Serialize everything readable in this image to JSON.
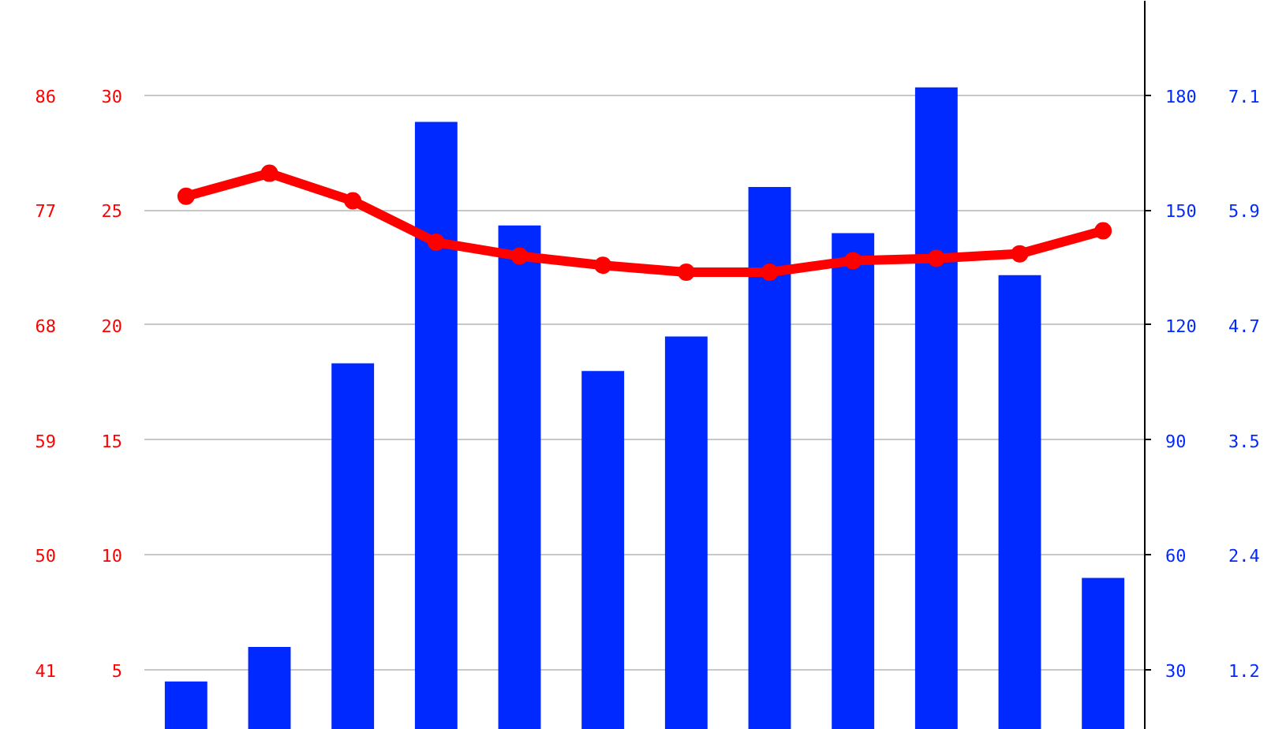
{
  "chart_data": {
    "type": "bar",
    "categories": [
      null,
      null,
      null,
      null,
      null,
      null,
      null,
      null,
      null,
      null,
      null,
      null
    ],
    "series": [
      {
        "axis": "y2",
        "color": "#0029ff",
        "values": [
          27,
          36,
          110,
          173,
          146,
          108,
          117,
          156,
          144,
          182,
          133,
          54
        ]
      },
      {
        "type": "line",
        "color": "#ff0000",
        "values": [
          25.6,
          26.6,
          25.4,
          23.6,
          23.0,
          22.6,
          22.3,
          22.3,
          22.8,
          22.9,
          23.1,
          24.1
        ]
      }
    ],
    "ylim": [
      2.4,
      34.1
    ],
    "yticks": [
      5,
      10,
      15,
      20,
      25,
      30
    ],
    "y2lim": [
      14.4,
      204.6
    ],
    "y2ticks": [
      30,
      60,
      90,
      120,
      150,
      180
    ],
    "y3lim": [
      36.3,
      93.4
    ],
    "y3ticks": [
      41,
      50,
      59,
      68,
      77,
      86
    ],
    "annotations": [
      "1.2",
      "2.4",
      "3.5",
      "4.7",
      "5.9",
      "7.1"
    ],
    "grid": "y",
    "marker": "circle",
    "line_style": "solid"
  }
}
